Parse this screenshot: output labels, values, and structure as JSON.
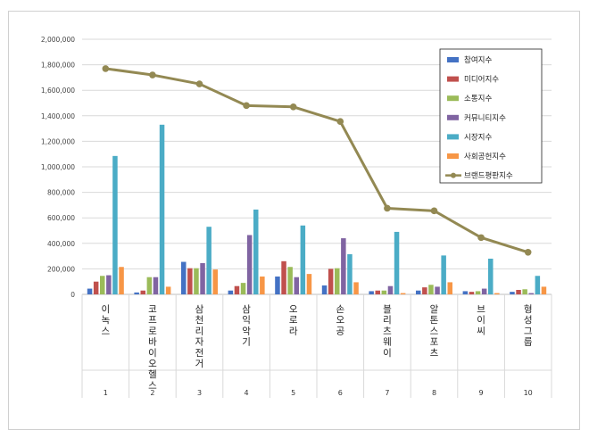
{
  "chart_data": {
    "type": "bar",
    "title": "",
    "xlabel": "",
    "ylabel": "",
    "ylim": [
      0,
      2000000
    ],
    "yticks": [
      "0",
      "200,000",
      "400,000",
      "600,000",
      "800,000",
      "1,000,000",
      "1,200,000",
      "1,400,000",
      "1,600,000",
      "1,800,000",
      "2,000,000"
    ],
    "ranks": [
      "1",
      "2",
      "3",
      "4",
      "5",
      "6",
      "7",
      "8",
      "9",
      "10"
    ],
    "categories": [
      "이녹스",
      "코프로바이오헬스",
      "삼천리자전거",
      "삼익악기",
      "오로라",
      "손오공",
      "블리츠웨이",
      "알톤스포츠",
      "브이씨",
      "형성그룹"
    ],
    "grid": true,
    "legend_position": "right",
    "series": [
      {
        "name": "참여지수",
        "color": "#4472C4",
        "values": [
          45000,
          15000,
          255000,
          30000,
          140000,
          70000,
          25000,
          30000,
          25000,
          20000
        ]
      },
      {
        "name": "미디어지수",
        "color": "#C0504D",
        "values": [
          100000,
          30000,
          205000,
          65000,
          260000,
          200000,
          30000,
          55000,
          20000,
          35000
        ]
      },
      {
        "name": "소통지수",
        "color": "#9BBB59",
        "values": [
          145000,
          135000,
          205000,
          90000,
          215000,
          205000,
          30000,
          75000,
          25000,
          40000
        ]
      },
      {
        "name": "커뮤니티지수",
        "color": "#8064A2",
        "values": [
          150000,
          135000,
          245000,
          465000,
          135000,
          440000,
          65000,
          60000,
          45000,
          10000
        ]
      },
      {
        "name": "시장지수",
        "color": "#4BACC6",
        "values": [
          1085000,
          1330000,
          530000,
          665000,
          540000,
          315000,
          490000,
          305000,
          280000,
          145000
        ]
      },
      {
        "name": "사회공헌지수",
        "color": "#F79646",
        "values": [
          215000,
          60000,
          195000,
          140000,
          160000,
          95000,
          10000,
          95000,
          10000,
          60000
        ]
      }
    ],
    "line": {
      "name": "브랜드평판지수",
      "color": "#938953",
      "values": [
        1770000,
        1720000,
        1650000,
        1480000,
        1470000,
        1355000,
        675000,
        655000,
        445000,
        330000
      ]
    }
  }
}
